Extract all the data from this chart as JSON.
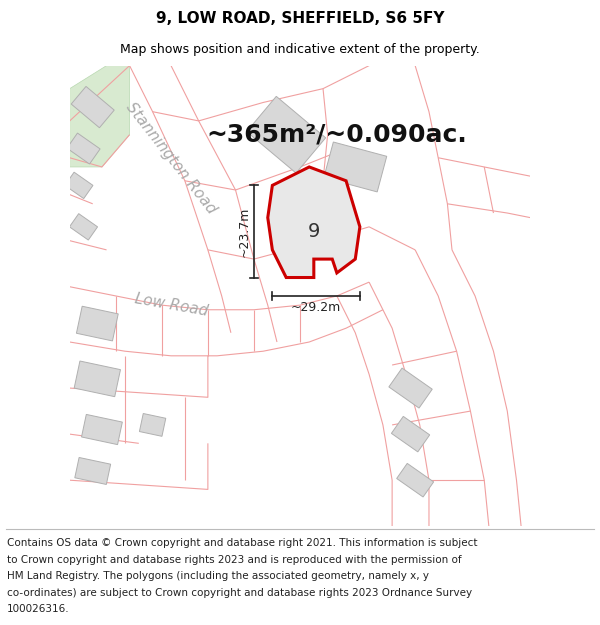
{
  "title": "9, LOW ROAD, SHEFFIELD, S6 5FY",
  "subtitle": "Map shows position and indicative extent of the property.",
  "area_text": "~365m²/~0.090ac.",
  "label_9": "9",
  "dim_height": "~23.7m",
  "dim_width": "~29.2m",
  "road_stannington": "Stannington Road",
  "road_low": "Low Road",
  "footer_lines": [
    "Contains OS data © Crown copyright and database right 2021. This information is subject",
    "to Crown copyright and database rights 2023 and is reproduced with the permission of",
    "HM Land Registry. The polygons (including the associated geometry, namely x, y",
    "co-ordinates) are subject to Crown copyright and database rights 2023 Ordnance Survey",
    "100026316."
  ],
  "map_bg": "#ffffff",
  "cadastral_color": "#f0a0a0",
  "cadastral_lw": 0.8,
  "building_fill": "#d8d8d8",
  "building_edge": "#b0b0b0",
  "plot_fill": "#e8e8e8",
  "plot_edge": "#cc0000",
  "plot_lw": 2.2,
  "green_fill": "#d8ead0",
  "road_label_color": "#aaaaaa",
  "dim_color": "#222222",
  "title_fontsize": 11,
  "subtitle_fontsize": 9,
  "area_fontsize": 18,
  "label_fontsize": 14,
  "dim_fontsize": 9,
  "road_label_fontsize": 11,
  "footer_fontsize": 7.5
}
